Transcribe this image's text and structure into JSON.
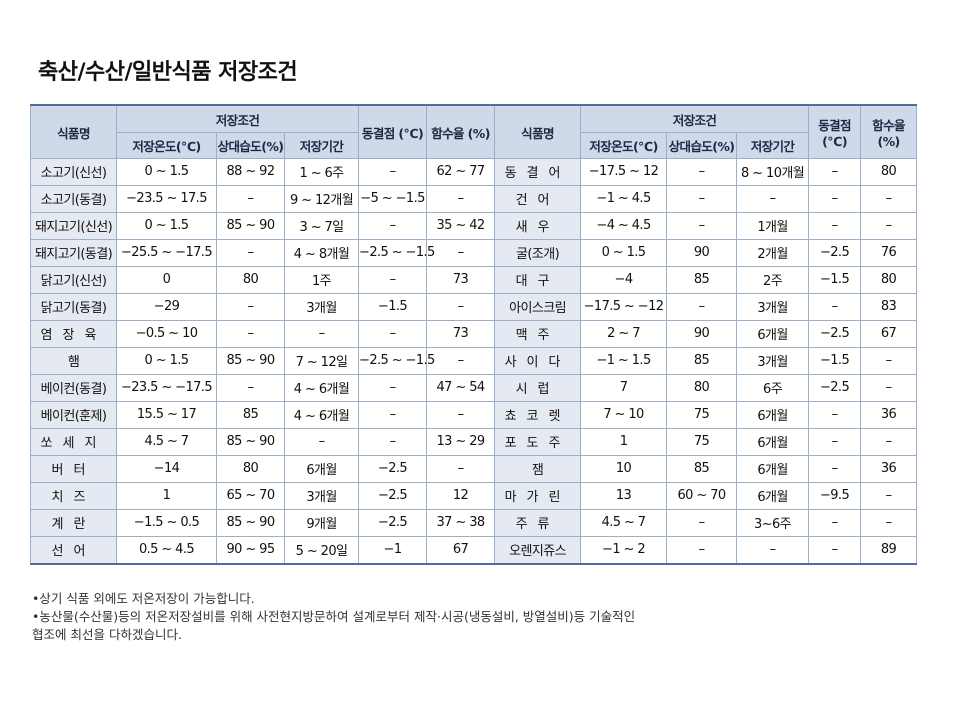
{
  "title": "축산/수산/일반식품 저장조건",
  "headers": {
    "food_name": "식품명",
    "storage_condition": "저장조건",
    "storage_temp": "저장온도(℃)",
    "rel_humidity": "상대습도(%)",
    "storage_period": "저장기간",
    "freezing_point": "동결점 (℃)",
    "water_content": "함수율 (%)"
  },
  "left_rows": [
    {
      "name": "소고기(신선)",
      "temp": "0 ~ 1.5",
      "hum": "88 ~ 92",
      "period": "1 ~ 6주",
      "freeze": "–",
      "water": "62 ~ 77"
    },
    {
      "name": "소고기(동결)",
      "temp": "−23.5 ~ 17.5",
      "hum": "–",
      "period": "9 ~ 12개월",
      "freeze": "−5 ~ −1.5",
      "water": "–"
    },
    {
      "name": "돼지고기(신선)",
      "temp": "0 ~ 1.5",
      "hum": "85 ~ 90",
      "period": "3 ~ 7일",
      "freeze": "–",
      "water": "35 ~ 42"
    },
    {
      "name": "돼지고기(동결)",
      "temp": "−25.5 ~ −17.5",
      "hum": "–",
      "period": "4 ~ 8개월",
      "freeze": "−2.5 ~ −1.5",
      "water": "–"
    },
    {
      "name": "닭고기(신선)",
      "temp": "0",
      "hum": "80",
      "period": "1주",
      "freeze": "–",
      "water": "73"
    },
    {
      "name": "닭고기(동결)",
      "temp": "−29",
      "hum": "–",
      "period": "3개월",
      "freeze": "−1.5",
      "water": "–"
    },
    {
      "name": "염장육",
      "temp": "−0.5 ~ 10",
      "hum": "–",
      "period": "–",
      "freeze": "–",
      "water": "73"
    },
    {
      "name": "햄",
      "temp": "0 ~ 1.5",
      "hum": "85 ~ 90",
      "period": "7 ~ 12일",
      "freeze": "−2.5 ~ −1.5",
      "water": "–"
    },
    {
      "name": "베이컨(동결)",
      "temp": "−23.5 ~ −17.5",
      "hum": "–",
      "period": "4 ~ 6개월",
      "freeze": "–",
      "water": "47 ~ 54"
    },
    {
      "name": "베이컨(훈제)",
      "temp": "15.5 ~ 17",
      "hum": "85",
      "period": "4 ~ 6개월",
      "freeze": "–",
      "water": "–"
    },
    {
      "name": "쏘세지",
      "temp": "4.5 ~ 7",
      "hum": "85 ~ 90",
      "period": "–",
      "freeze": "–",
      "water": "13 ~ 29"
    },
    {
      "name": "버터",
      "temp": "−14",
      "hum": "80",
      "period": "6개월",
      "freeze": "−2.5",
      "water": "–"
    },
    {
      "name": "치즈",
      "temp": "1",
      "hum": "65 ~ 70",
      "period": "3개월",
      "freeze": "−2.5",
      "water": "12"
    },
    {
      "name": "계란",
      "temp": "−1.5 ~ 0.5",
      "hum": "85 ~ 90",
      "period": "9개월",
      "freeze": "−2.5",
      "water": "37 ~ 38"
    },
    {
      "name": "선어",
      "temp": "0.5 ~ 4.5",
      "hum": "90 ~ 95",
      "period": "5 ~ 20일",
      "freeze": "−1",
      "water": "67"
    }
  ],
  "right_rows": [
    {
      "name": "동결어",
      "temp": "−17.5 ~ 12",
      "hum": "–",
      "period": "8 ~ 10개월",
      "freeze": "–",
      "water": "80"
    },
    {
      "name": "건어",
      "temp": "−1 ~ 4.5",
      "hum": "–",
      "period": "–",
      "freeze": "–",
      "water": "–"
    },
    {
      "name": "새우",
      "temp": "−4 ~ 4.5",
      "hum": "–",
      "period": "1개월",
      "freeze": "–",
      "water": "–"
    },
    {
      "name": "굴(조개)",
      "temp": "0 ~ 1.5",
      "hum": "90",
      "period": "2개월",
      "freeze": "−2.5",
      "water": "76"
    },
    {
      "name": "대구",
      "temp": "−4",
      "hum": "85",
      "period": "2주",
      "freeze": "−1.5",
      "water": "80"
    },
    {
      "name": "아이스크림",
      "temp": "−17.5 ~ −12",
      "hum": "–",
      "period": "3개월",
      "freeze": "–",
      "water": "83"
    },
    {
      "name": "맥주",
      "temp": "2 ~ 7",
      "hum": "90",
      "period": "6개월",
      "freeze": "−2.5",
      "water": "67"
    },
    {
      "name": "사이다",
      "temp": "−1 ~ 1.5",
      "hum": "85",
      "period": "3개월",
      "freeze": "−1.5",
      "water": "–"
    },
    {
      "name": "시럽",
      "temp": "7",
      "hum": "80",
      "period": "6주",
      "freeze": "−2.5",
      "water": "–"
    },
    {
      "name": "쵸코렛",
      "temp": "7 ~ 10",
      "hum": "75",
      "period": "6개월",
      "freeze": "–",
      "water": "36"
    },
    {
      "name": "포도주",
      "temp": "1",
      "hum": "75",
      "period": "6개월",
      "freeze": "–",
      "water": "–"
    },
    {
      "name": "잼",
      "temp": "10",
      "hum": "85",
      "period": "6개월",
      "freeze": "–",
      "water": "36"
    },
    {
      "name": "마가린",
      "temp": "13",
      "hum": "60 ~ 70",
      "period": "6개월",
      "freeze": "−9.5",
      "water": "–"
    },
    {
      "name": "주류",
      "temp": "4.5 ~ 7",
      "hum": "–",
      "period": "3~6주",
      "freeze": "–",
      "water": "–"
    },
    {
      "name": "오렌지쥬스",
      "temp": "−1 ~ 2",
      "hum": "–",
      "period": "–",
      "freeze": "–",
      "water": "89"
    }
  ],
  "notes": [
    "•상기 식품 외에도 저온저장이 가능합니다.",
    "•농산물(수산물)등의 저온저장설비를 위해 사전현지방문하여 설계로부터 제작·시공(냉동설비, 방열설비)등 기술적인",
    "협조에 최선을 다하겠습니다."
  ]
}
